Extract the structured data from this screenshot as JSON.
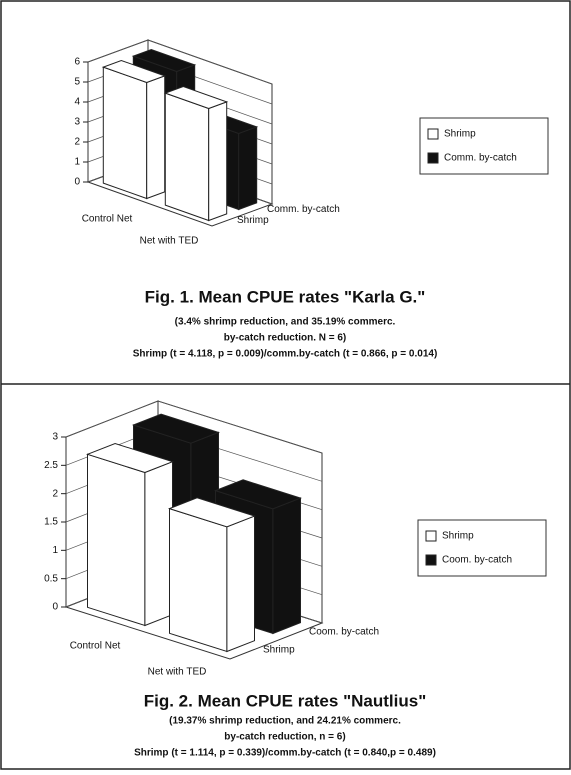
{
  "chart_data": [
    {
      "type": "bar3d",
      "title": "Fig. 1. Mean CPUE rates \"Karla G.\"",
      "caption": [
        "(3.4% shrimp reduction, and 35.19% commerc.",
        "by-catch reduction. N = 6)",
        "Shrimp (t = 4.118, p = 0.009)/comm.by-catch (t = 0.866, p = 0.014)"
      ],
      "categories": [
        "Control Net",
        "Net with TED"
      ],
      "series": [
        {
          "name": "Shrimp",
          "color": "#ffffff",
          "values": [
            5.8,
            5.6
          ]
        },
        {
          "name": "Comm. by-catch",
          "color": "#111111",
          "values": [
            5.8,
            3.8
          ]
        }
      ],
      "ylim": [
        0,
        6
      ],
      "yticks": [
        0,
        1,
        2,
        3,
        4,
        5,
        6
      ],
      "grid": true,
      "legend": "right"
    },
    {
      "type": "bar3d",
      "title": "Fig. 2. Mean CPUE rates \"Nautlius\"",
      "caption": [
        "(19.37% shrimp reduction, and 24.21% commerc.",
        "by-catch reduction, n = 6)",
        "Shrimp (t = 1.114, p = 0.339)/comm.by-catch (t = 0.840,p = 0.489)"
      ],
      "categories": [
        "Control Net",
        "Net with TED"
      ],
      "series": [
        {
          "name": "Shrimp",
          "color": "#ffffff",
          "values": [
            2.7,
            2.2
          ]
        },
        {
          "name": "Coom. by-catch",
          "color": "#111111",
          "values": [
            2.9,
            2.2
          ]
        }
      ],
      "ylim": [
        0,
        3
      ],
      "yticks": [
        0,
        0.5,
        1,
        1.5,
        2,
        2.5,
        3
      ],
      "grid": true,
      "legend": "right"
    }
  ]
}
